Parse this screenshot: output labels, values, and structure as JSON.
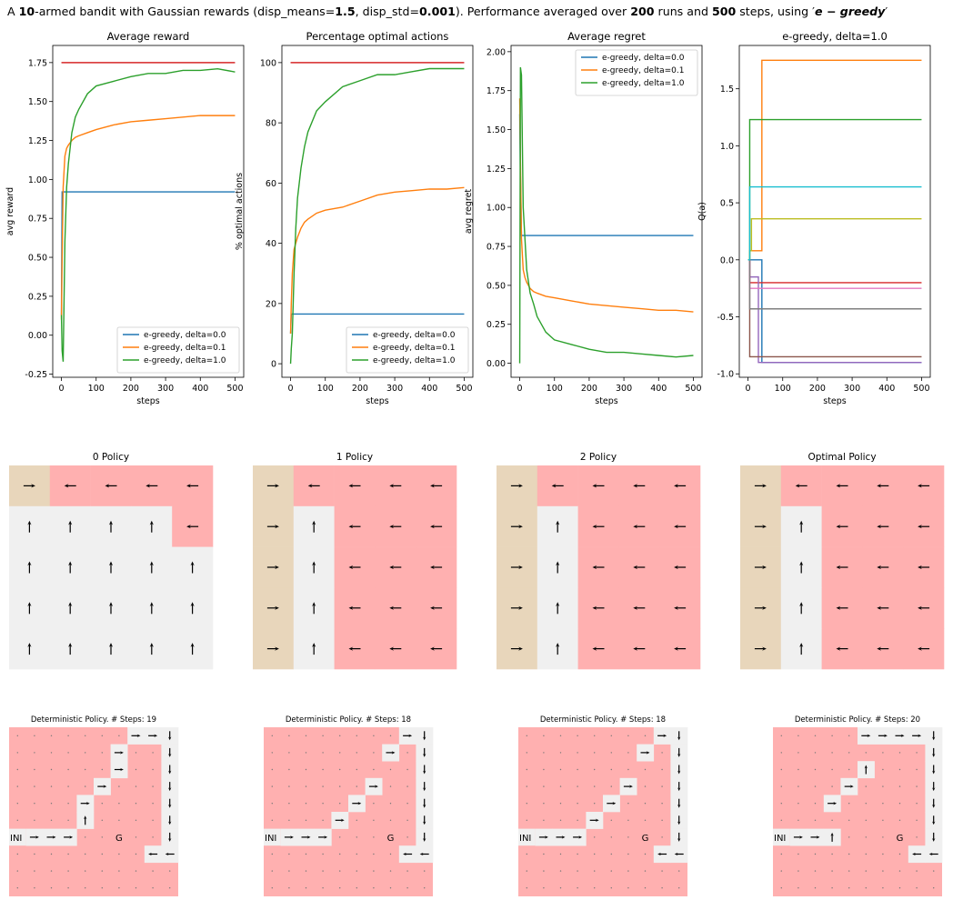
{
  "title": [
    {
      "text": "A "
    },
    {
      "text": "10",
      "weight": "bold"
    },
    {
      "text": "-armed bandit with Gaussian rewards (disp_means="
    },
    {
      "text": "1.5",
      "weight": "bold"
    },
    {
      "text": ", disp_std="
    },
    {
      "text": "0.001",
      "weight": "bold"
    },
    {
      "text": "). Performance averaged over "
    },
    {
      "text": "200",
      "weight": "bold"
    },
    {
      "text": " runs and "
    },
    {
      "text": "500",
      "weight": "bold"
    },
    {
      "text": " steps, using ′"
    },
    {
      "text": "e − greedy",
      "weight": "bold",
      "italic": true
    },
    {
      "text": "′"
    }
  ],
  "chart_data": [
    {
      "type": "line",
      "title": "Average reward",
      "xlabel": "steps",
      "ylabel": "avg reward",
      "x": [
        0,
        2,
        5,
        10,
        15,
        20,
        30,
        40,
        50,
        75,
        100,
        150,
        200,
        250,
        300,
        350,
        400,
        450,
        500
      ],
      "xlim": [
        -25,
        525
      ],
      "xticks": [
        0,
        100,
        200,
        300,
        400,
        500
      ],
      "ylim": [
        -0.27,
        1.86
      ],
      "yticks": [
        -0.25,
        {
          "value": 0,
          "label": "0.00"
        },
        0.25,
        {
          "value": 0.5,
          "label": "0.50"
        },
        0.75,
        {
          "value": 1,
          "label": "1.00"
        },
        1.25,
        {
          "value": 1.5,
          "label": "1.50"
        },
        1.75
      ],
      "reference_line": {
        "value": 1.75,
        "color": "#d62728"
      },
      "legend": "lower right",
      "series": [
        {
          "name": "e-greedy, delta=0.0",
          "color": "#1f77b4",
          "values": [
            0.13,
            0.92,
            0.92,
            0.92,
            0.92,
            0.92,
            0.92,
            0.92,
            0.92,
            0.92,
            0.92,
            0.92,
            0.92,
            0.92,
            0.92,
            0.92,
            0.92,
            0.92,
            0.92
          ]
        },
        {
          "name": "e-greedy, delta=0.1",
          "color": "#ff7f0e",
          "values": [
            0.1,
            0.5,
            0.95,
            1.15,
            1.2,
            1.22,
            1.25,
            1.27,
            1.28,
            1.3,
            1.32,
            1.35,
            1.37,
            1.38,
            1.39,
            1.4,
            1.41,
            1.41,
            1.41
          ]
        },
        {
          "name": "e-greedy, delta=1.0",
          "color": "#2ca02c",
          "values": [
            0.13,
            -0.1,
            -0.17,
            0.6,
            0.95,
            1.1,
            1.3,
            1.4,
            1.45,
            1.55,
            1.6,
            1.63,
            1.66,
            1.68,
            1.68,
            1.7,
            1.7,
            1.71,
            1.69
          ]
        }
      ]
    },
    {
      "type": "line",
      "title": "Percentage optimal actions",
      "xlabel": "steps",
      "ylabel": "% optimal actions",
      "x": [
        0,
        2,
        5,
        10,
        15,
        20,
        30,
        40,
        50,
        75,
        100,
        150,
        200,
        250,
        300,
        350,
        400,
        450,
        500
      ],
      "xlim": [
        -25,
        525
      ],
      "xticks": [
        0,
        100,
        200,
        300,
        400,
        500
      ],
      "ylim": [
        -4.5,
        105.7
      ],
      "yticks": [
        0,
        20,
        40,
        60,
        80,
        100
      ],
      "reference_line": {
        "value": 100,
        "color": "#d62728"
      },
      "legend": "lower right",
      "series": [
        {
          "name": "e-greedy, delta=0.0",
          "color": "#1f77b4",
          "values": [
            10,
            16.5,
            16.5,
            16.5,
            16.5,
            16.5,
            16.5,
            16.5,
            16.5,
            16.5,
            16.5,
            16.5,
            16.5,
            16.5,
            16.5,
            16.5,
            16.5,
            16.5,
            16.5
          ]
        },
        {
          "name": "e-greedy, delta=0.1",
          "color": "#ff7f0e",
          "values": [
            10,
            20,
            30,
            38,
            40,
            42,
            45,
            47,
            48,
            50,
            51,
            52,
            54,
            56,
            57,
            57.5,
            58,
            58,
            58.5
          ]
        },
        {
          "name": "e-greedy, delta=1.0",
          "color": "#2ca02c",
          "values": [
            0,
            5,
            10,
            30,
            45,
            55,
            65,
            72,
            77,
            84,
            87,
            92,
            94,
            96,
            96,
            97,
            98,
            98,
            98
          ]
        }
      ]
    },
    {
      "type": "line",
      "title": "Average regret",
      "xlabel": "steps",
      "ylabel": "avg regret",
      "x": [
        0,
        2,
        5,
        10,
        15,
        20,
        30,
        40,
        50,
        75,
        100,
        150,
        200,
        250,
        300,
        350,
        400,
        450,
        500
      ],
      "xlim": [
        -25,
        525
      ],
      "xticks": [
        0,
        100,
        200,
        300,
        400,
        500
      ],
      "ylim": [
        -0.09,
        2.04
      ],
      "yticks": [
        {
          "value": 0,
          "label": "0.00"
        },
        0.25,
        {
          "value": 0.5,
          "label": "0.50"
        },
        0.75,
        {
          "value": 1,
          "label": "1.00"
        },
        1.25,
        {
          "value": 1.5,
          "label": "1.50"
        },
        1.75,
        {
          "value": 2,
          "label": "2.00"
        }
      ],
      "legend": "upper right",
      "series": [
        {
          "name": "e-greedy, delta=0.0",
          "color": "#1f77b4",
          "values": [
            1.6,
            1.2,
            0.82,
            0.82,
            0.82,
            0.82,
            0.82,
            0.82,
            0.82,
            0.82,
            0.82,
            0.82,
            0.82,
            0.82,
            0.82,
            0.82,
            0.82,
            0.82,
            0.82
          ]
        },
        {
          "name": "e-greedy, delta=0.1",
          "color": "#ff7f0e",
          "values": [
            1.7,
            1.3,
            0.8,
            0.6,
            0.55,
            0.52,
            0.48,
            0.46,
            0.45,
            0.43,
            0.42,
            0.4,
            0.38,
            0.37,
            0.36,
            0.35,
            0.34,
            0.34,
            0.33
          ]
        },
        {
          "name": "e-greedy, delta=1.0",
          "color": "#2ca02c",
          "values": [
            0,
            1.9,
            1.85,
            1.0,
            0.8,
            0.6,
            0.45,
            0.38,
            0.3,
            0.2,
            0.15,
            0.12,
            0.09,
            0.07,
            0.07,
            0.06,
            0.05,
            0.04,
            0.05
          ]
        }
      ]
    },
    {
      "type": "step",
      "title": "e-greedy, delta=1.0",
      "xlabel": "steps",
      "ylabel": "Q(a)",
      "x": [
        0,
        5,
        10,
        30,
        40,
        500
      ],
      "xlim": [
        -25,
        525
      ],
      "xticks": [
        0,
        100,
        200,
        300,
        400,
        500
      ],
      "ylim": [
        -1.03,
        1.88
      ],
      "yticks": [
        {
          "value": -1,
          "label": "-1.0"
        },
        -0.5,
        {
          "value": 0,
          "label": "0.0"
        },
        0.5,
        {
          "value": 1,
          "label": "1.0"
        },
        1.5
      ],
      "series": [
        {
          "color": "#1f77b4",
          "values": [
            0,
            0,
            0,
            0,
            -0.9,
            -0.9
          ]
        },
        {
          "color": "#ff7f0e",
          "values": [
            0,
            0.08,
            0.08,
            0.08,
            1.75,
            1.75
          ]
        },
        {
          "color": "#2ca02c",
          "values": [
            0,
            1.23,
            1.23,
            1.23,
            1.23,
            1.23
          ]
        },
        {
          "color": "#d62728",
          "values": [
            0,
            -0.2,
            -0.2,
            -0.2,
            -0.2,
            -0.2
          ]
        },
        {
          "color": "#9467bd",
          "values": [
            0,
            -0.15,
            -0.15,
            -0.9,
            -0.9,
            -0.9
          ]
        },
        {
          "color": "#8c564b",
          "values": [
            0,
            -0.85,
            -0.85,
            -0.85,
            -0.85,
            -0.85
          ]
        },
        {
          "color": "#e377c2",
          "values": [
            0,
            -0.25,
            -0.25,
            -0.25,
            -0.25,
            -0.25
          ]
        },
        {
          "color": "#7f7f7f",
          "values": [
            0,
            -0.43,
            -0.43,
            -0.43,
            -0.43,
            -0.43
          ]
        },
        {
          "color": "#bcbd22",
          "values": [
            0,
            0.08,
            0.36,
            0.36,
            0.36,
            0.36
          ]
        },
        {
          "color": "#17becf",
          "values": [
            0,
            0.64,
            0.64,
            0.64,
            0.64,
            0.64
          ]
        }
      ]
    }
  ],
  "policy_palette": {
    "T": "#e8d6bb",
    "R": "#ffb0b0",
    "G": "#f0f0f0"
  },
  "policies": [
    {
      "title": "0 Policy",
      "cells": [
        "TRRRR",
        "GGGGR",
        "GGGGG",
        "GGGGG",
        "GGGGG"
      ],
      "arrows": [
        "RLLLL",
        "UUUUL",
        "UUUUU",
        "UUUUU",
        "UUUUU"
      ]
    },
    {
      "title": "1 Policy",
      "cells": [
        "TRRRR",
        "TGRRR",
        "TGRRR",
        "TGRRR",
        "TGRRR"
      ],
      "arrows": [
        "RLLLL",
        "RULLL",
        "RULLL",
        "RULLL",
        "RULLL"
      ]
    },
    {
      "title": "2 Policy",
      "cells": [
        "TRRRR",
        "TGRRR",
        "TGRRR",
        "TGRRR",
        "TGRRR"
      ],
      "arrows": [
        "RLLLL",
        "RULLL",
        "RULLL",
        "RULLL",
        "RULLL"
      ]
    },
    {
      "title": "Optimal Policy",
      "cells": [
        "TRRRR",
        "TGRRR",
        "TGRRR",
        "TGRRR",
        "TGRRR"
      ],
      "arrows": [
        "RLLLL",
        "RULLL",
        "RULLL",
        "RULLL",
        "RULLL"
      ]
    }
  ],
  "paths": [
    {
      "title": "Deterministic Policy. # Steps: 19",
      "start_label": "INI",
      "goal_label": "G",
      "start": [
        6,
        0
      ],
      "goal": [
        6,
        6
      ],
      "cells": [
        [
          6,
          1,
          "R"
        ],
        [
          6,
          2,
          "R"
        ],
        [
          6,
          3,
          "R"
        ],
        [
          5,
          4,
          "U"
        ],
        [
          4,
          4,
          "R"
        ],
        [
          3,
          5,
          "R"
        ],
        [
          2,
          6,
          "R"
        ],
        [
          1,
          6,
          "R"
        ],
        [
          0,
          7,
          "R"
        ],
        [
          0,
          8,
          "R"
        ],
        [
          0,
          9,
          "D"
        ],
        [
          1,
          9,
          "D"
        ],
        [
          2,
          9,
          "D"
        ],
        [
          3,
          9,
          "D"
        ],
        [
          4,
          9,
          "D"
        ],
        [
          5,
          9,
          "D"
        ],
        [
          6,
          9,
          "D"
        ],
        [
          7,
          9,
          "L"
        ],
        [
          7,
          8,
          "L"
        ]
      ]
    },
    {
      "title": "Deterministic Policy. # Steps: 18",
      "start_label": "INI",
      "goal_label": "G",
      "start": [
        6,
        0
      ],
      "goal": [
        6,
        7
      ],
      "cells": [
        [
          6,
          1,
          "R"
        ],
        [
          6,
          2,
          "R"
        ],
        [
          6,
          3,
          "R"
        ],
        [
          5,
          4,
          "R"
        ],
        [
          4,
          5,
          "R"
        ],
        [
          3,
          6,
          "R"
        ],
        [
          1,
          7,
          "R"
        ],
        [
          0,
          8,
          "R"
        ],
        [
          0,
          9,
          "D"
        ],
        [
          1,
          9,
          "D"
        ],
        [
          2,
          9,
          "D"
        ],
        [
          3,
          9,
          "D"
        ],
        [
          4,
          9,
          "D"
        ],
        [
          5,
          9,
          "D"
        ],
        [
          6,
          9,
          "D"
        ],
        [
          7,
          9,
          "L"
        ],
        [
          7,
          8,
          "L"
        ]
      ]
    },
    {
      "title": "Deterministic Policy. # Steps: 18",
      "start_label": "INI",
      "goal_label": "G",
      "start": [
        6,
        0
      ],
      "goal": [
        6,
        7
      ],
      "cells": [
        [
          6,
          1,
          "R"
        ],
        [
          6,
          2,
          "R"
        ],
        [
          6,
          3,
          "R"
        ],
        [
          5,
          4,
          "R"
        ],
        [
          4,
          5,
          "R"
        ],
        [
          3,
          6,
          "R"
        ],
        [
          1,
          7,
          "R"
        ],
        [
          0,
          8,
          "R"
        ],
        [
          0,
          9,
          "D"
        ],
        [
          1,
          9,
          "D"
        ],
        [
          2,
          9,
          "D"
        ],
        [
          3,
          9,
          "D"
        ],
        [
          4,
          9,
          "D"
        ],
        [
          5,
          9,
          "D"
        ],
        [
          6,
          9,
          "D"
        ],
        [
          7,
          9,
          "L"
        ],
        [
          7,
          8,
          "L"
        ]
      ]
    },
    {
      "title": "Deterministic Policy. # Steps: 20",
      "start_label": "INI",
      "goal_label": "G",
      "start": [
        6,
        0
      ],
      "goal": [
        6,
        7
      ],
      "cells": [
        [
          6,
          1,
          "R"
        ],
        [
          6,
          2,
          "R"
        ],
        [
          6,
          3,
          "U"
        ],
        [
          4,
          3,
          "R"
        ],
        [
          3,
          4,
          "R"
        ],
        [
          2,
          5,
          "U"
        ],
        [
          0,
          5,
          "R"
        ],
        [
          0,
          6,
          "R"
        ],
        [
          0,
          7,
          "R"
        ],
        [
          0,
          8,
          "R"
        ],
        [
          0,
          9,
          "D"
        ],
        [
          1,
          9,
          "D"
        ],
        [
          2,
          9,
          "D"
        ],
        [
          3,
          9,
          "D"
        ],
        [
          4,
          9,
          "D"
        ],
        [
          5,
          9,
          "D"
        ],
        [
          6,
          9,
          "D"
        ],
        [
          7,
          9,
          "L"
        ],
        [
          7,
          8,
          "L"
        ]
      ]
    }
  ]
}
